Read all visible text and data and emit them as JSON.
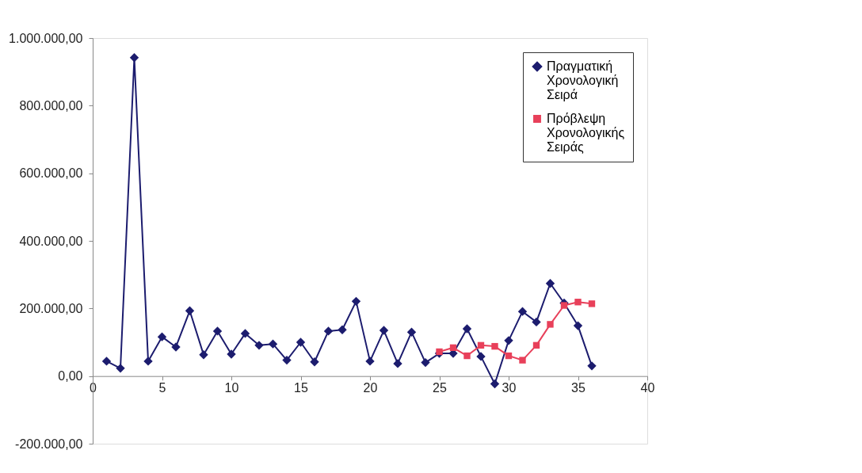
{
  "chart_data": {
    "type": "line",
    "x": [
      1,
      2,
      3,
      4,
      5,
      6,
      7,
      8,
      9,
      10,
      11,
      12,
      13,
      14,
      15,
      16,
      17,
      18,
      19,
      20,
      21,
      22,
      23,
      24,
      25,
      26,
      27,
      28,
      29,
      30,
      31,
      32,
      33,
      34,
      35,
      36
    ],
    "series": [
      {
        "name": "Πραγματική Χρονολογική Σειρά",
        "color": "#1c1c6e",
        "marker": "diamond",
        "values": [
          44000,
          23000,
          942000,
          44000,
          116000,
          86000,
          193000,
          63000,
          133000,
          65000,
          126000,
          91000,
          95000,
          47000,
          100000,
          42000,
          133000,
          137000,
          221000,
          44000,
          135000,
          37000,
          130000,
          40000,
          67000,
          67000,
          140000,
          58000,
          -23000,
          105000,
          191000,
          160000,
          274000,
          216000,
          149000,
          30000
        ]
      },
      {
        "name": "Πρόβλεψη Χρονολογικής Σειράς",
        "color": "#e8405a",
        "marker": "square",
        "x": [
          25,
          26,
          27,
          28,
          29,
          30,
          31,
          32,
          33,
          34,
          35,
          36
        ],
        "values": [
          72000,
          84000,
          60000,
          91000,
          88000,
          60000,
          47000,
          91000,
          153000,
          209000,
          219000,
          214000
        ]
      }
    ],
    "xlim": [
      0,
      40
    ],
    "xticks": [
      0,
      5,
      10,
      15,
      20,
      25,
      30,
      35,
      40
    ],
    "ylim": [
      -200000,
      1000000
    ],
    "yticks": [
      {
        "value": -200000,
        "label": "-200.000,00"
      },
      {
        "value": 0,
        "label": "0,00"
      },
      {
        "value": 200000,
        "label": "200.000,00"
      },
      {
        "value": 400000,
        "label": "400.000,00"
      },
      {
        "value": 600000,
        "label": "600.000,00"
      },
      {
        "value": 800000,
        "label": "800.000,00"
      },
      {
        "value": 1000000,
        "label": "1.000.000,00"
      }
    ],
    "grid": false,
    "legend": "top right",
    "line_style": "solid"
  }
}
